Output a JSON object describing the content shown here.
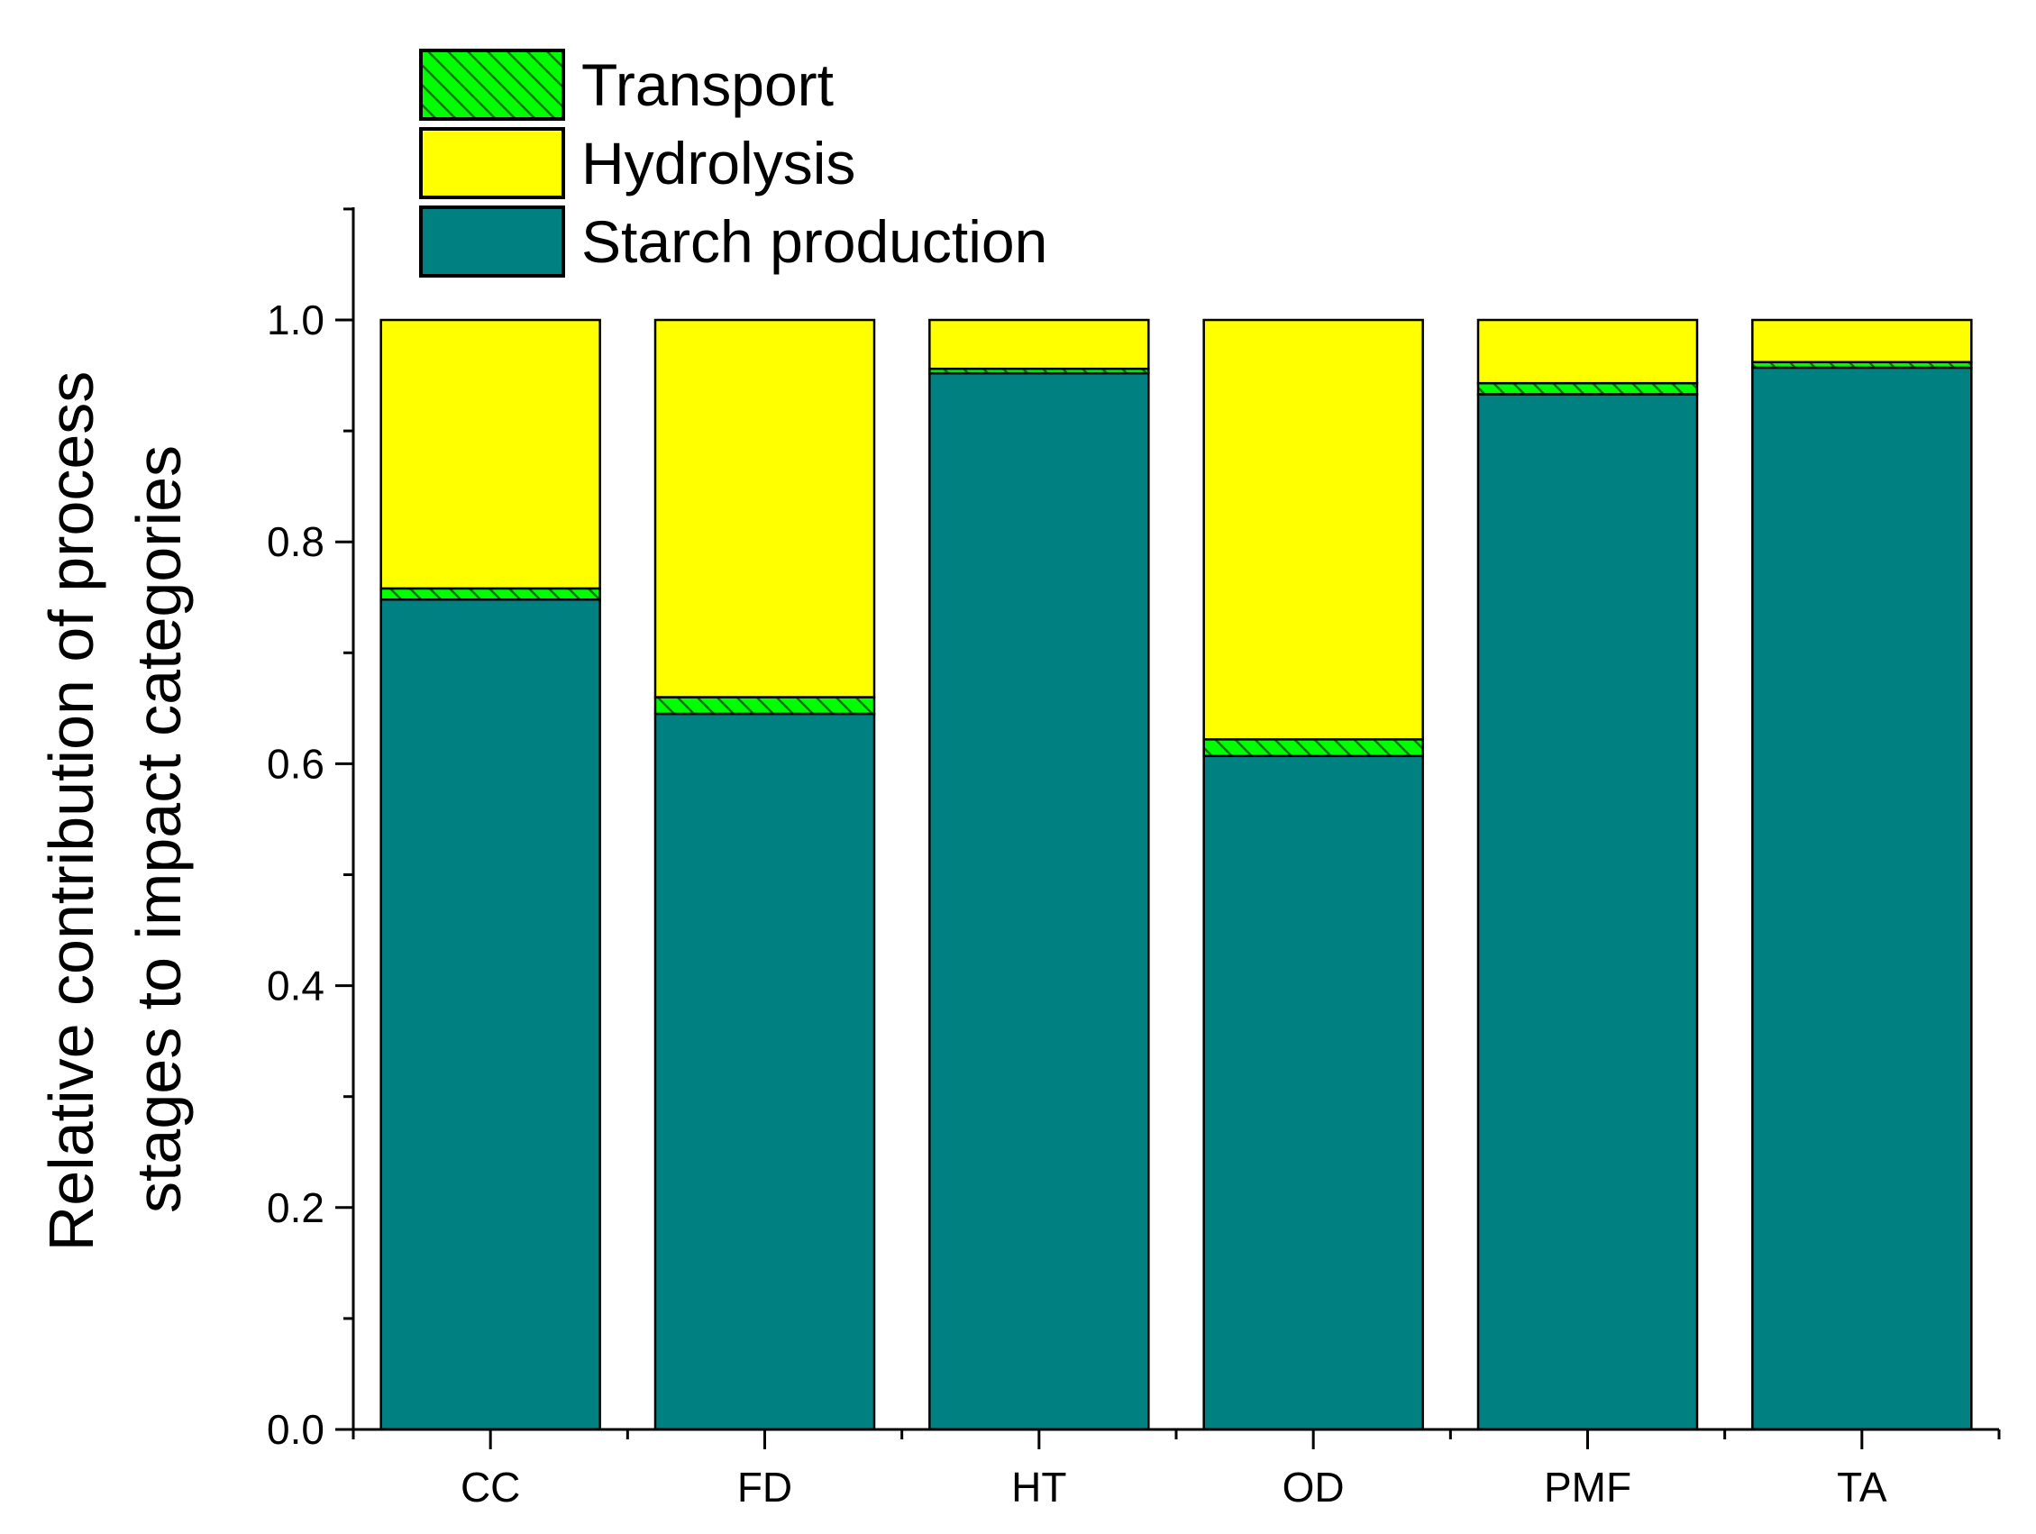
{
  "chart_data": {
    "type": "bar",
    "stacked": true,
    "title": "",
    "xlabel": "",
    "ylabel": [
      "Relative contribution of process",
      "stages to impact categories"
    ],
    "ylim": [
      0,
      1.1
    ],
    "yticks": [
      0.0,
      0.2,
      0.4,
      0.6,
      0.8,
      1.0
    ],
    "ytick_labels": [
      "0.0",
      "0.2",
      "0.4",
      "0.6",
      "0.8",
      "1.0"
    ],
    "categories": [
      "CC",
      "FD",
      "HT",
      "OD",
      "PMF",
      "TA"
    ],
    "series": [
      {
        "name": "Starch production",
        "color": "#008080",
        "hatch": false,
        "values": [
          0.748,
          0.645,
          0.952,
          0.607,
          0.933,
          0.957
        ]
      },
      {
        "name": "Transport",
        "color": "#00FF00",
        "hatch": true,
        "values": [
          0.01,
          0.015,
          0.004,
          0.015,
          0.01,
          0.005
        ]
      },
      {
        "name": "Hydrolysis",
        "color": "#FFFF00",
        "hatch": false,
        "values": [
          0.242,
          0.34,
          0.044,
          0.378,
          0.057,
          0.038
        ]
      }
    ],
    "legend": {
      "position": "top-left",
      "order": [
        "Transport",
        "Hydrolysis",
        "Starch production"
      ]
    }
  }
}
